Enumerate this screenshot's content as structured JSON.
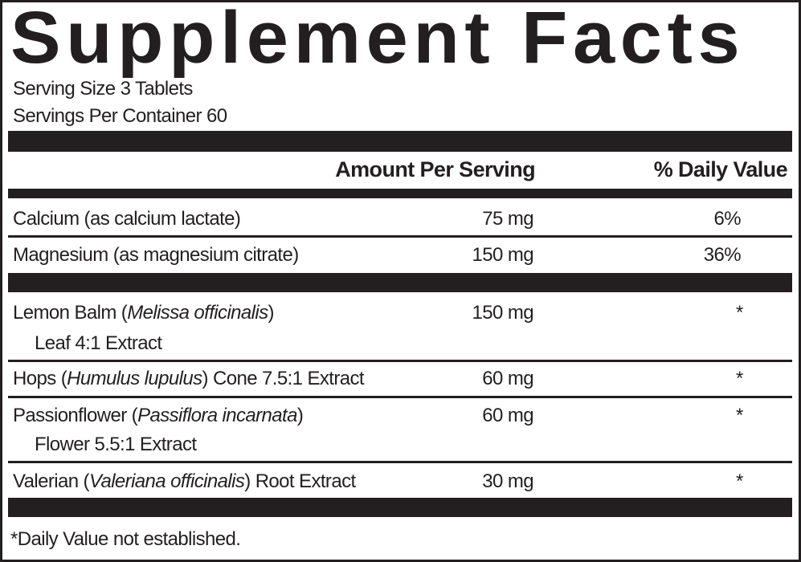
{
  "title": "Supplement Facts",
  "serving_size": "Serving Size 3 Tablets",
  "servings_per_container": "Servings Per Container 60",
  "header": {
    "amount": "Amount Per Serving",
    "daily_value": "% Daily Value"
  },
  "nutrients": [
    {
      "name": "Calcium (as calcium lactate)",
      "amount": "75 mg",
      "dv": "6%"
    },
    {
      "name": "Magnesium (as magnesium citrate)",
      "amount": "150 mg",
      "dv": "36%"
    }
  ],
  "herbs": [
    {
      "name": "Lemon Balm (",
      "latin": "Melissa officinalis",
      "suffix": ")",
      "line2": "Leaf 4:1 Extract",
      "amount": "150 mg",
      "dv": "*"
    },
    {
      "name": "Hops (",
      "latin": "Humulus lupulus",
      "suffix": ") Cone 7.5:1 Extract",
      "amount": "60 mg",
      "dv": "*"
    },
    {
      "name": "Passionflower (",
      "latin": "Passiflora incarnata",
      "suffix": ")",
      "line2": "Flower 5.5:1 Extract",
      "amount": "60 mg",
      "dv": "*"
    },
    {
      "name": "Valerian (",
      "latin": "Valeriana officinalis",
      "suffix": ") Root Extract",
      "amount": "30 mg",
      "dv": "*"
    }
  ],
  "footnote": "*Daily Value not established."
}
